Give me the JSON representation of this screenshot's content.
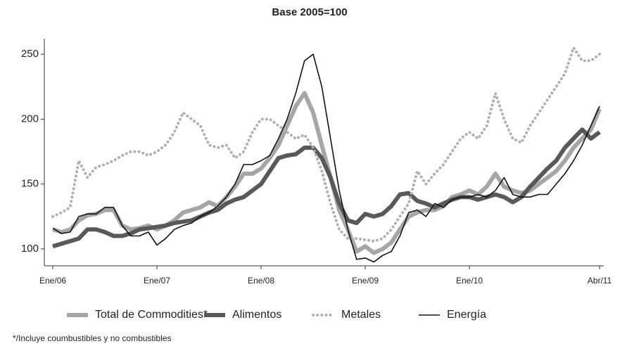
{
  "chart_data": {
    "type": "line",
    "title": "Base 2005=100",
    "categories": [
      "Ene/06",
      null,
      null,
      null,
      null,
      null,
      null,
      null,
      null,
      null,
      null,
      null,
      "Ene/07",
      null,
      null,
      null,
      null,
      null,
      null,
      null,
      null,
      null,
      null,
      null,
      "Ene/08",
      null,
      null,
      null,
      null,
      null,
      null,
      null,
      null,
      null,
      null,
      null,
      "Ene/09",
      null,
      null,
      null,
      null,
      null,
      null,
      null,
      null,
      null,
      null,
      null,
      "Ene/10",
      null,
      null,
      null,
      null,
      null,
      null,
      null,
      null,
      null,
      null,
      null,
      null,
      null,
      null,
      "Abr/11"
    ],
    "series": [
      {
        "name": "Total de Commodities*",
        "color": "#a6a6a6",
        "style": "thick",
        "values": [
          115,
          113,
          115,
          122,
          126,
          127,
          130,
          130,
          118,
          115,
          116,
          118,
          115,
          118,
          122,
          128,
          130,
          132,
          136,
          133,
          140,
          148,
          158,
          158,
          162,
          170,
          180,
          195,
          210,
          220,
          205,
          180,
          155,
          130,
          115,
          98,
          102,
          97,
          100,
          105,
          115,
          125,
          128,
          130,
          130,
          133,
          140,
          142,
          145,
          142,
          148,
          158,
          148,
          145,
          143,
          145,
          150,
          155,
          160,
          168,
          178,
          185,
          192,
          208
        ]
      },
      {
        "name": "Alimentos",
        "color": "#595959",
        "style": "thick",
        "values": [
          102,
          104,
          106,
          108,
          115,
          115,
          113,
          110,
          110,
          112,
          115,
          116,
          117,
          118,
          120,
          121,
          122,
          125,
          128,
          130,
          135,
          138,
          140,
          145,
          150,
          160,
          170,
          172,
          173,
          178,
          178,
          170,
          155,
          135,
          122,
          120,
          127,
          125,
          127,
          133,
          142,
          143,
          137,
          135,
          132,
          135,
          138,
          140,
          140,
          138,
          140,
          142,
          140,
          136,
          140,
          148,
          155,
          162,
          168,
          178,
          185,
          192,
          185,
          190
        ]
      },
      {
        "name": "Metales",
        "color": "#b0b0b0",
        "style": "dotted",
        "values": [
          125,
          128,
          132,
          168,
          155,
          163,
          165,
          168,
          172,
          175,
          175,
          172,
          175,
          180,
          190,
          205,
          200,
          195,
          180,
          178,
          180,
          170,
          175,
          190,
          200,
          200,
          195,
          190,
          185,
          188,
          178,
          160,
          135,
          115,
          108,
          108,
          107,
          106,
          108,
          115,
          125,
          135,
          160,
          150,
          158,
          165,
          175,
          185,
          190,
          185,
          195,
          220,
          200,
          185,
          182,
          195,
          205,
          215,
          225,
          235,
          255,
          245,
          245,
          250
        ]
      },
      {
        "name": "Energía",
        "color": "#111111",
        "style": "thin",
        "values": [
          116,
          112,
          113,
          125,
          127,
          127,
          132,
          132,
          118,
          110,
          110,
          113,
          103,
          108,
          115,
          118,
          120,
          125,
          128,
          133,
          140,
          150,
          165,
          165,
          168,
          172,
          185,
          200,
          220,
          245,
          250,
          225,
          185,
          145,
          115,
          92,
          93,
          90,
          95,
          98,
          110,
          128,
          130,
          125,
          135,
          132,
          138,
          140,
          140,
          142,
          140,
          145,
          155,
          142,
          140,
          140,
          142,
          142,
          150,
          158,
          168,
          180,
          195,
          210
        ]
      }
    ],
    "ylim": [
      87,
      262
    ],
    "yticks": [
      100,
      150,
      200,
      250
    ],
    "grid": false,
    "note": "*/Incluye coumbustibles y no combustibles"
  }
}
